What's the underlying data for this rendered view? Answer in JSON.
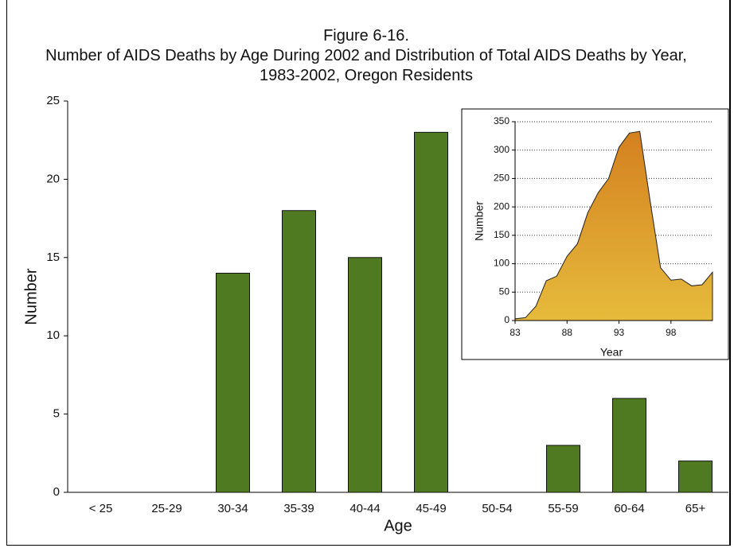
{
  "chart_data": [
    {
      "type": "bar",
      "title": "Figure 6-16.",
      "subtitle": "Number of AIDS Deaths by Age During 2002 and Distribution of Total AIDS Deaths by Year, 1983-2002, Oregon Residents",
      "xlabel": "Age",
      "ylabel": "Number",
      "categories": [
        "< 25",
        "25-29",
        "30-34",
        "35-39",
        "40-44",
        "45-49",
        "50-54",
        "55-59",
        "60-64",
        "65+"
      ],
      "values": [
        0,
        0,
        14,
        18,
        15,
        23,
        0,
        3,
        6,
        2
      ],
      "color": "#4f7a21",
      "ylim": [
        0,
        25
      ],
      "yticks": [
        0,
        5,
        10,
        15,
        20,
        25
      ],
      "grid": false
    },
    {
      "type": "area",
      "xlabel": "Year",
      "ylabel": "Number",
      "x": [
        1983,
        1984,
        1985,
        1986,
        1987,
        1988,
        1989,
        1990,
        1991,
        1992,
        1993,
        1994,
        1995,
        1996,
        1997,
        1998,
        1999,
        2000,
        2001,
        2002
      ],
      "values": [
        3,
        5,
        25,
        70,
        78,
        113,
        135,
        190,
        225,
        250,
        305,
        330,
        333,
        210,
        93,
        71,
        73,
        61,
        63,
        85
      ],
      "color": "#d9a12e",
      "xlim": [
        1983,
        2002
      ],
      "xticks": [
        {
          "value": 1983,
          "label": "83"
        },
        {
          "value": 1988,
          "label": "88"
        },
        {
          "value": 1993,
          "label": "93"
        },
        {
          "value": 1998,
          "label": "98"
        }
      ],
      "ylim": [
        0,
        350
      ],
      "yticks": [
        0,
        50,
        100,
        150,
        200,
        250,
        300,
        350
      ],
      "grid": true
    }
  ]
}
